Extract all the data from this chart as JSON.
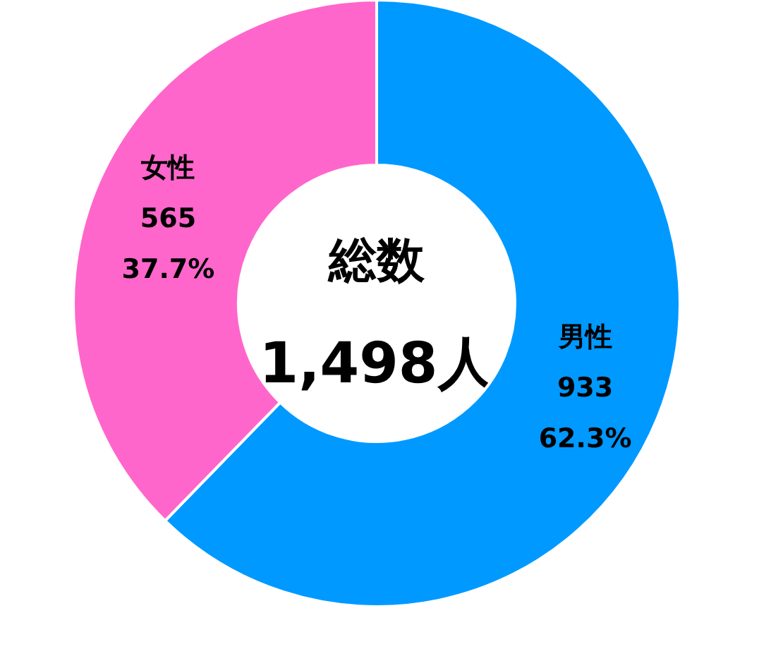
{
  "chart_data": {
    "type": "donut",
    "categories": [
      "男性",
      "女性"
    ],
    "values": [
      933,
      565
    ],
    "colors": [
      "#0099ff",
      "#ff66cc"
    ],
    "value_labels": [
      "933\n62.3%",
      "565\n37.7%"
    ],
    "annotations": [
      "総数",
      "1,498人"
    ],
    "legend": false
  }
}
